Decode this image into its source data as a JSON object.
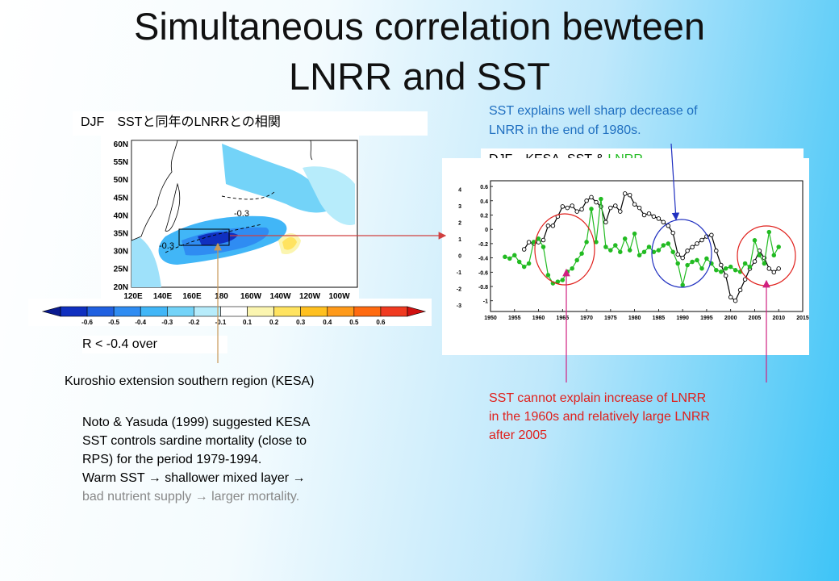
{
  "title_line1": "Simultaneous correlation bewteen",
  "title_line2": "LNRR and SST",
  "map_panel": {
    "label": "DJF　SSTと同年のLNRRとの相関",
    "lat_labels": [
      "60N",
      "55N",
      "50N",
      "45N",
      "40N",
      "35N",
      "30N",
      "25N",
      "20N"
    ],
    "lon_labels": [
      "120E",
      "140E",
      "160E",
      "180",
      "160W",
      "140W",
      "120W",
      "100W"
    ],
    "contour_labels": [
      "-0.3",
      "-0.3"
    ],
    "colorbar_ticks": [
      "-0.6",
      "-0.5",
      "-0.4",
      "-0.3",
      "-0.2",
      "-0.1",
      "0.1",
      "0.2",
      "0.3",
      "0.4",
      "0.5",
      "0.6"
    ],
    "colorbar_colors": [
      "#1030c0",
      "#2060e0",
      "#2f8cf2",
      "#41b6f7",
      "#73d3f8",
      "#b7ecfb",
      "#ffffff",
      "#fbf5b0",
      "#ffe360",
      "#ffc020",
      "#ff9a1a",
      "#ff6a10",
      "#f03a20"
    ]
  },
  "note_r": "R < -0.4 over",
  "note_kesa": "Kuroshio extension southern region (KESA)",
  "noto_lines": [
    "Noto & Yasuda (1999) suggested KESA",
    "SST controls sardine mortality (close to",
    "RPS) for the period 1979-1994.",
    "Warm SST → shallower mixed layer →"
  ],
  "noto_last": "bad nutrient supply  → larger mortality.",
  "sst_explains": [
    "SST explains well sharp decrease of",
    "LNRR in the end of 1980s."
  ],
  "sst_cannot": [
    "SST cannot explain increase of LNRR",
    "in the 1960s and relatively large LNRR",
    "after 2005"
  ],
  "chart_label_prefix": "DJF　KESA -SST & ",
  "chart_label_green": "LNRR",
  "colors": {
    "black_series": "#000000",
    "green_series": "#22bb22",
    "blue_text": "#1f6fc0",
    "red_text": "#e0201c"
  },
  "chart_data": {
    "type": "line",
    "title": "DJF　KESA -SST & LNRR",
    "xlim": [
      1950,
      2015
    ],
    "x_ticks": [
      "1950",
      "1955",
      "1960",
      "1965",
      "1970",
      "1975",
      "1980",
      "1985",
      "1990",
      "1995",
      "2000",
      "2005",
      "2010",
      "2015"
    ],
    "left_axis": {
      "ylim": [
        -3.4,
        4.5
      ],
      "ticks": [
        "4",
        "3",
        "2",
        "1",
        "0",
        "-1",
        "-2",
        "-3"
      ]
    },
    "right_axis": {
      "ylim": [
        -1.15,
        0.68
      ],
      "ticks": [
        "0.6",
        "0.4",
        "0.2",
        "0",
        "-0.2",
        "-0.4",
        "-0.6",
        "-0.8",
        "-1"
      ]
    },
    "series": [
      {
        "color": "black",
        "axis": "right",
        "x": [
          1957,
          1958,
          1959,
          1960,
          1961,
          1962,
          1963,
          1964,
          1965,
          1966,
          1967,
          1968,
          1969,
          1970,
          1971,
          1972,
          1973,
          1974,
          1975,
          1976,
          1977,
          1978,
          1979,
          1980,
          1981,
          1982,
          1983,
          1984,
          1985,
          1986,
          1987,
          1988,
          1989,
          1990,
          1991,
          1992,
          1993,
          1994,
          1995,
          1996,
          1997,
          1998,
          1999,
          2000,
          2001,
          2002,
          2003,
          2004,
          2005,
          2006,
          2007,
          2008,
          2009,
          2010
        ],
        "y": [
          -0.28,
          -0.18,
          -0.2,
          -0.18,
          -0.15,
          0.05,
          0.05,
          0.18,
          0.32,
          0.3,
          0.33,
          0.25,
          0.28,
          0.4,
          0.45,
          0.38,
          0.32,
          0.1,
          0.3,
          0.33,
          0.25,
          0.5,
          0.48,
          0.35,
          0.3,
          0.2,
          0.22,
          0.18,
          0.15,
          0.1,
          0.05,
          -0.05,
          -0.35,
          -0.4,
          -0.3,
          -0.25,
          -0.2,
          -0.15,
          -0.1,
          -0.08,
          -0.3,
          -0.5,
          -0.65,
          -0.95,
          -1.0,
          -0.85,
          -0.7,
          -0.55,
          -0.45,
          -0.3,
          -0.4,
          -0.55,
          -0.6,
          -0.55
        ]
      },
      {
        "color": "green",
        "axis": "left",
        "x": [
          1953,
          1954,
          1955,
          1956,
          1957,
          1958,
          1959,
          1960,
          1961,
          1962,
          1963,
          1964,
          1965,
          1966,
          1967,
          1968,
          1969,
          1970,
          1971,
          1972,
          1973,
          1974,
          1975,
          1976,
          1977,
          1978,
          1979,
          1980,
          1981,
          1982,
          1983,
          1984,
          1985,
          1986,
          1987,
          1988,
          1989,
          1990,
          1991,
          1992,
          1993,
          1994,
          1995,
          1996,
          1997,
          1998,
          1999,
          2000,
          2001,
          2002,
          2003,
          2004,
          2005,
          2006,
          2007,
          2008,
          2009,
          2010
        ],
        "y": [
          -0.1,
          -0.2,
          0.0,
          -0.4,
          -0.7,
          -0.5,
          0.8,
          1.0,
          0.5,
          -1.2,
          -1.7,
          -1.6,
          -1.5,
          -1.0,
          -0.8,
          -0.3,
          0.1,
          0.8,
          2.8,
          0.8,
          3.4,
          0.5,
          0.3,
          0.6,
          0.2,
          1.0,
          0.3,
          1.3,
          0.0,
          0.2,
          0.5,
          0.2,
          0.3,
          0.6,
          0.7,
          0.2,
          -0.5,
          -1.8,
          -0.6,
          -0.4,
          -0.3,
          -0.8,
          -0.2,
          -0.5,
          -0.9,
          -1.0,
          -0.8,
          -0.7,
          -0.9,
          -1.0,
          -0.5,
          -0.7,
          0.9,
          0.0,
          -0.5,
          1.4,
          0.0,
          0.5
        ]
      }
    ]
  }
}
